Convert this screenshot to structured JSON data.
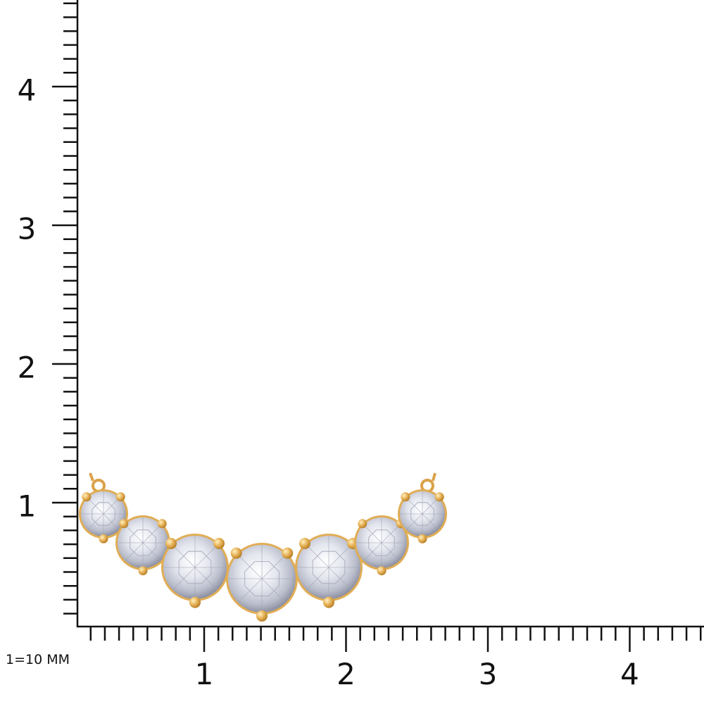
{
  "scale_label": "1=10 MM",
  "x_axis": {
    "labels": [
      "1",
      "2",
      "3",
      "4"
    ]
  },
  "y_axis": {
    "labels": [
      "1",
      "2",
      "3",
      "4"
    ]
  }
}
